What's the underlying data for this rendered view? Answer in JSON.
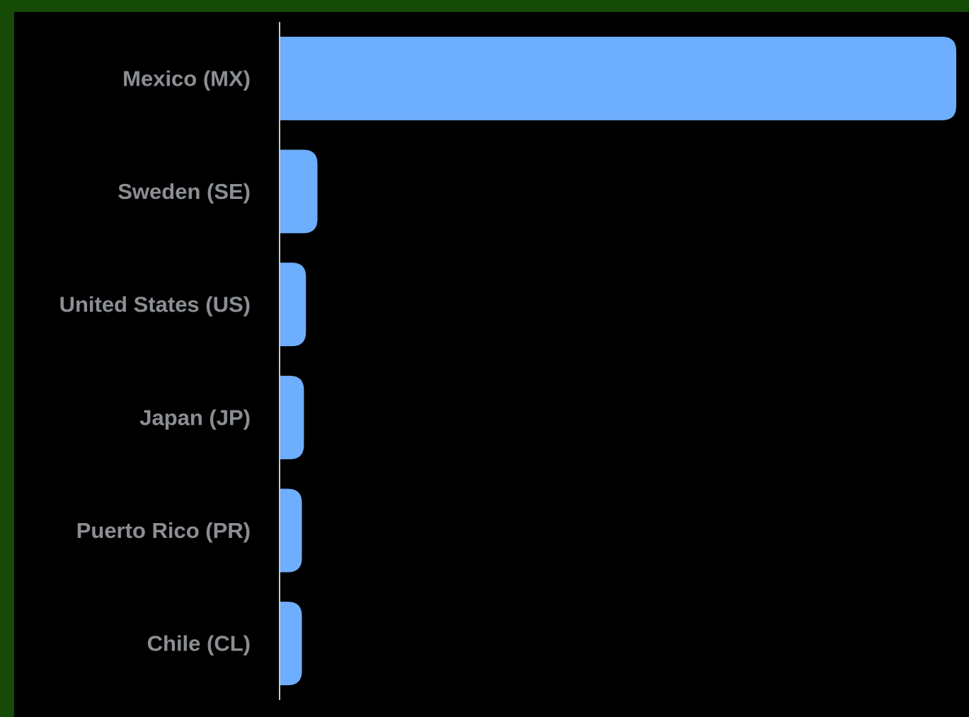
{
  "chart_data": {
    "type": "bar",
    "orientation": "horizontal",
    "categories": [
      "Mexico (MX)",
      "Sweden (SE)",
      "United States (US)",
      "Japan (JP)",
      "Puerto Rico (PR)",
      "Chile (CL)"
    ],
    "values": [
      100,
      5.6,
      3.9,
      3.6,
      3.3,
      3.3
    ],
    "xlim": [
      0,
      100
    ],
    "title": "",
    "xlabel": "",
    "ylabel": "",
    "grid": false,
    "legend": "none"
  },
  "colors": {
    "frame": "#164a07",
    "background": "#000000",
    "bar": "#6eaefe",
    "label": "#8b8e93",
    "axis": "#c9c9c9"
  }
}
